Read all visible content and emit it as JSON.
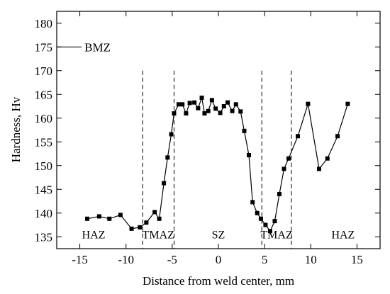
{
  "chart_data": {
    "type": "line",
    "xlabel": "Distance from weld center, mm",
    "ylabel": "Hardness, Hv",
    "xlim": [
      -17.5,
      17.5
    ],
    "ylim": [
      132.5,
      182.5
    ],
    "xticks": [
      -15,
      -10,
      -5,
      0,
      5,
      10,
      15
    ],
    "yticks": [
      135,
      140,
      145,
      150,
      155,
      160,
      165,
      170,
      175,
      180
    ],
    "grid": false,
    "legend": "none",
    "marker": "square",
    "line_color": "#000000",
    "series": [
      {
        "x": [
          -14.2,
          -12.9,
          -11.8,
          -10.6,
          -9.4,
          -8.5,
          -7.8,
          -6.9,
          -6.4,
          -5.9,
          -5.5,
          -5.1,
          -4.8,
          -4.3,
          -3.9,
          -3.5,
          -3.1,
          -2.6,
          -2.2,
          -1.8,
          -1.5,
          -1.1,
          -0.7,
          -0.3,
          0.2,
          0.6,
          1.0,
          1.5,
          1.9,
          2.4,
          2.8,
          3.3,
          3.7,
          4.2,
          4.6,
          5.1,
          5.6,
          6.1,
          6.6,
          7.1,
          7.6,
          8.6,
          9.7,
          10.9,
          11.8,
          12.9,
          14.0
        ],
        "y": [
          138.8,
          139.3,
          138.8,
          139.6,
          136.7,
          137.0,
          138.0,
          140.2,
          138.8,
          146.3,
          151.7,
          156.6,
          161.0,
          162.9,
          162.9,
          161.0,
          163.2,
          163.3,
          162.1,
          164.3,
          161.0,
          161.5,
          163.8,
          162.0,
          161.1,
          162.5,
          163.3,
          161.5,
          162.9,
          161.4,
          157.3,
          152.2,
          142.3,
          140.0,
          138.8,
          137.5,
          136.2,
          138.3,
          144.0,
          149.3,
          151.5,
          156.2,
          163.0,
          149.3,
          151.5,
          156.2,
          163.0
        ]
      }
    ],
    "reference_lines": {
      "vertical_x": [
        -8.2,
        -4.8,
        4.7,
        7.9
      ],
      "vertical_style": "dashed",
      "horizontal": {
        "y": 175,
        "x_from": -17.5,
        "x_to": -14.8,
        "label": "BMZ"
      }
    },
    "annotations": [
      {
        "text": "HAZ",
        "x": -13.5,
        "y": 134.7
      },
      {
        "text": "TMAZ",
        "x": -6.5,
        "y": 134.7
      },
      {
        "text": "SZ",
        "x": 0,
        "y": 134.7
      },
      {
        "text": "TMAZ",
        "x": 6.3,
        "y": 134.7
      },
      {
        "text": "HAZ",
        "x": 13.5,
        "y": 134.7
      }
    ]
  }
}
